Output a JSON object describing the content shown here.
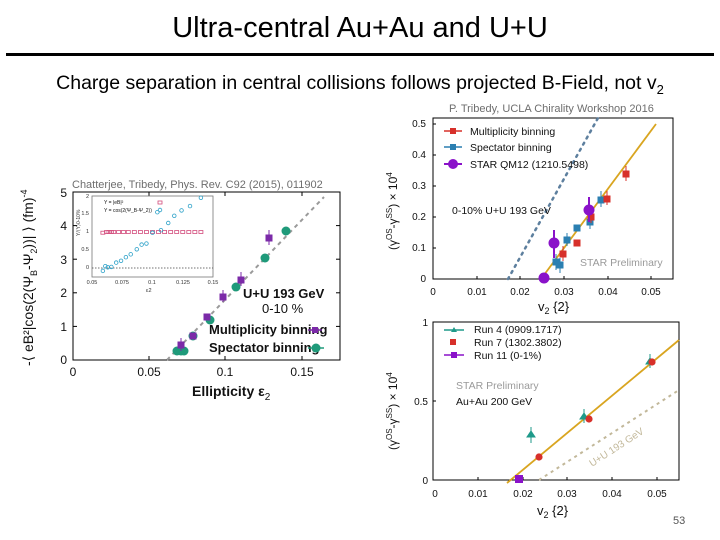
{
  "slide": {
    "title": "Ultra-central Au+Au and U+U",
    "subtitle_main": "Charge separation in central collisions follows projected B-Field, not v",
    "subtitle_sub": "2",
    "credit_right": "P. Tribedy, UCLA Chirality Workshop 2016",
    "credit_left": "Chatterjee, Tribedy, Phys. Rev. C92 (2015), 011902",
    "slide_number": "53"
  },
  "colors": {
    "multiplicity_left": "#7b2aa8",
    "spectator_left": "#1f9a7a",
    "fit_dashed_gray": "#9a9a9a",
    "multiplicity_right": "#d7302a",
    "spectator_right": "#2b7fb1",
    "star_qm12": "#8a12c9",
    "fit_line_orange": "#d9a520",
    "uu_dotted_blue": "#5d7f9e",
    "run4": "#1f9a8a",
    "run7": "#d7302a",
    "run11": "#8a12c9",
    "uu_dashed_tan": "#c2b89a",
    "inset_pink": "#d34c7c",
    "inset_cyan": "#2aa0c8"
  },
  "chart_data": [
    {
      "id": "left-main",
      "type": "scatter",
      "title": "",
      "xlabel": "Ellipticity ε2",
      "ylabel": "-⟨ eB² |cos(2(Ψ_B-Ψ_2))| ⟩ (fm)^-4",
      "xlim": [
        0,
        0.175
      ],
      "ylim": [
        0,
        5
      ],
      "xticks": [
        "0",
        "0.05",
        "0.1",
        "0.15"
      ],
      "yticks": [
        "0",
        "1",
        "2",
        "3",
        "4",
        "5"
      ],
      "grid": false,
      "legend_position": "lower right",
      "annotations": [
        "U+U 193 GeV",
        "0-10 %"
      ],
      "series": [
        {
          "name": "Multiplicity binning",
          "marker": "square",
          "points": [
            [
              0.069,
              0.28
            ],
            [
              0.072,
              0.42
            ],
            [
              0.08,
              0.72
            ],
            [
              0.089,
              1.3
            ],
            [
              0.1,
              1.88
            ],
            [
              0.112,
              2.38
            ],
            [
              0.137,
              3.65
            ]
          ]
        },
        {
          "name": "Spectator binning",
          "marker": "hexagon",
          "points": [
            [
              0.068,
              0.26
            ],
            [
              0.071,
              0.26
            ],
            [
              0.073,
              0.26
            ],
            [
              0.079,
              0.7
            ],
            [
              0.09,
              1.2
            ],
            [
              0.107,
              2.18
            ],
            [
              0.126,
              3.04
            ],
            [
              0.14,
              3.84
            ]
          ]
        },
        {
          "name": "linear fit",
          "style": "dashed",
          "points": [
            [
              0.062,
              0.0
            ],
            [
              0.165,
              4.85
            ]
          ]
        }
      ]
    },
    {
      "id": "left-inset",
      "type": "scatter",
      "xlabel": "ε2",
      "ylabel": "Y/⟨Y⟩ 0-10%",
      "xlim": [
        0.05,
        0.15
      ],
      "ylim": [
        -0.25,
        2
      ],
      "xticks": [
        "0.05",
        "0.075",
        "0.1",
        "0.125",
        "0.15"
      ],
      "yticks": [
        "0",
        "0.5",
        "1",
        "1.5",
        "2"
      ],
      "reference_line": 0,
      "legend_position": "upper left",
      "series": [
        {
          "name": "Y = |eB|²",
          "marker": "open-square",
          "points": [
            [
              0.059,
              0.98
            ],
            [
              0.062,
              1.0
            ],
            [
              0.064,
              1.0
            ],
            [
              0.066,
              1.0
            ],
            [
              0.068,
              1.0
            ],
            [
              0.072,
              1.0
            ],
            [
              0.076,
              1.0
            ],
            [
              0.08,
              1.0
            ],
            [
              0.085,
              1.0
            ],
            [
              0.09,
              1.0
            ],
            [
              0.095,
              1.0
            ],
            [
              0.1,
              1.0
            ],
            [
              0.105,
              1.0
            ],
            [
              0.11,
              1.0
            ],
            [
              0.115,
              1.0
            ],
            [
              0.12,
              1.0
            ],
            [
              0.125,
              1.0
            ],
            [
              0.13,
              1.0
            ],
            [
              0.135,
              1.0
            ],
            [
              0.14,
              1.0
            ]
          ]
        },
        {
          "name": "Y = cos(2(Ψ_B-Ψ_2))",
          "marker": "open-circle",
          "points": [
            [
              0.059,
              -0.08
            ],
            [
              0.061,
              0.05
            ],
            [
              0.063,
              0.02
            ],
            [
              0.066,
              0.03
            ],
            [
              0.07,
              0.15
            ],
            [
              0.074,
              0.2
            ],
            [
              0.078,
              0.3
            ],
            [
              0.082,
              0.38
            ],
            [
              0.087,
              0.52
            ],
            [
              0.091,
              0.65
            ],
            [
              0.095,
              0.68
            ],
            [
              0.1,
              0.98
            ],
            [
              0.104,
              1.55
            ],
            [
              0.107,
              1.05
            ],
            [
              0.113,
              1.25
            ],
            [
              0.118,
              1.45
            ],
            [
              0.124,
              1.6
            ],
            [
              0.131,
              1.72
            ],
            [
              0.14,
              1.95
            ]
          ]
        }
      ]
    },
    {
      "id": "right-top",
      "type": "scatter",
      "xlabel": "v2 {2}",
      "ylabel": "(γ^OS - γ^SS) × 10^4",
      "xlim": [
        0,
        0.055
      ],
      "ylim": [
        0,
        0.52
      ],
      "xticks": [
        "0",
        "0.01",
        "0.02",
        "0.03",
        "0.04",
        "0.05"
      ],
      "yticks": [
        "0",
        "0.1",
        "0.2",
        "0.3",
        "0.4",
        "0.5"
      ],
      "legend_position": "upper left",
      "annotations": [
        "0-10% U+U 193 GeV",
        "STAR Preliminary"
      ],
      "series": [
        {
          "name": "Multiplicity binning",
          "marker": "square",
          "points": [
            [
              0.0282,
              0.08
            ],
            [
              0.0312,
              0.115
            ],
            [
              0.0345,
              0.2
            ],
            [
              0.0382,
              0.26
            ],
            [
              0.0425,
              0.34
            ]
          ]
        },
        {
          "name": "Spectator binning",
          "marker": "square",
          "points": [
            [
              0.0275,
              0.055
            ],
            [
              0.0284,
              0.045
            ],
            [
              0.03,
              0.125
            ],
            [
              0.0323,
              0.165
            ],
            [
              0.0352,
              0.185
            ],
            [
              0.0378,
              0.255
            ]
          ]
        },
        {
          "name": "STAR QM12 (1210.5498)",
          "marker": "circle",
          "points": [
            [
              0.0253,
              0.0
            ],
            [
              0.0276,
              0.11
            ],
            [
              0.0355,
              0.22
            ]
          ]
        },
        {
          "name": "linear fit (solid)",
          "style": "solid",
          "points": [
            [
              0.0247,
              0.0
            ],
            [
              0.051,
              0.5
            ]
          ]
        },
        {
          "name": "dotted line",
          "style": "dotted",
          "points": [
            [
              0.0172,
              0.0
            ],
            [
              0.0378,
              0.52
            ]
          ]
        }
      ]
    },
    {
      "id": "right-bottom",
      "type": "scatter",
      "xlabel": "v2 {2}",
      "ylabel": "(γ^OS - γ^SS) × 10^4",
      "xlim": [
        0,
        0.055
      ],
      "ylim": [
        0,
        1
      ],
      "xticks": [
        "0",
        "0.01",
        "0.02",
        "0.03",
        "0.04",
        "0.05"
      ],
      "yticks": [
        "0",
        "0.5",
        "1"
      ],
      "legend_position": "upper left",
      "annotations": [
        "STAR Preliminary",
        "Au+Au 200 GeV",
        "U+U 193 GeV"
      ],
      "series": [
        {
          "name": "Run 4 (0909.1717)",
          "marker": "triangle",
          "points": [
            [
              0.022,
              0.16
            ],
            [
              0.034,
              0.4
            ],
            [
              0.0482,
              0.77
            ]
          ]
        },
        {
          "name": "Run 7 (1302.3802)",
          "marker": "square",
          "points": [
            [
              0.0238,
              0.145
            ],
            [
              0.035,
              0.385
            ],
            [
              0.0487,
              0.745
            ]
          ]
        },
        {
          "name": "Run 11 (0-1%)",
          "marker": "square",
          "points": [
            [
              0.019,
              0.0
            ]
          ]
        },
        {
          "name": "linear fit (solid)",
          "style": "solid",
          "points": [
            [
              0.0165,
              -0.02
            ],
            [
              0.055,
              0.9
            ]
          ]
        },
        {
          "name": "U+U 193 GeV (dashed)",
          "style": "dashed",
          "points": [
            [
              0.0238,
              0.0
            ],
            [
              0.055,
              0.57
            ]
          ]
        }
      ]
    }
  ],
  "left_plot": {
    "ylabel_text": "-⟨ eB²|cos(2(Ψ",
    "ylabel_B": "B",
    "ylabel_mid": "-Ψ",
    "ylabel_2": "2",
    "ylabel_end": "))| ⟩ (fm)",
    "ylabel_exp": "-4",
    "xlabel": "Ellipticity ε",
    "xlabel_sub": "2",
    "annot_1": "U+U 193 GeV",
    "annot_2": "0-10 %",
    "legend": [
      "Multiplicity binning",
      "Spectator binning"
    ],
    "xticks": [
      "0",
      "0.05",
      "0.1",
      "0.15"
    ],
    "yticks": [
      "0",
      "1",
      "2",
      "3",
      "4",
      "5"
    ],
    "inset": {
      "legend": [
        "Y = |eB|²",
        "Y = cos(2(Ψ_B-Ψ_2))"
      ],
      "xticks": [
        "0.05",
        "0.075",
        "0.1",
        "0.125",
        "0.15"
      ],
      "yticks": [
        "0",
        "0.5",
        "1",
        "1.5",
        "2"
      ],
      "xlabel": "ε2",
      "ylabel": "Y/⟨Y⟩0-10%"
    }
  },
  "right_top_plot": {
    "legend": [
      "Multiplicity binning",
      "Spectator binning",
      "STAR QM12 (1210.5498)"
    ],
    "annot": "0-10% U+U 193 GeV",
    "preliminary": "STAR Preliminary",
    "xticks": [
      "0",
      "0.01",
      "0.02",
      "0.03",
      "0.04",
      "0.05"
    ],
    "yticks": [
      "0",
      "0.1",
      "0.2",
      "0.3",
      "0.4",
      "0.5"
    ],
    "xlabel": "v",
    "xlabel_sub": "2",
    "xlabel_end": " {2}",
    "ylabel": "(γOS-γSS) × 10⁴"
  },
  "right_bottom_plot": {
    "legend": [
      "Run 4 (0909.1717)",
      "Run 7 (1302.3802)",
      "Run 11 (0-1%)"
    ],
    "preliminary": "STAR Preliminary",
    "annot": "Au+Au 200 GeV",
    "uu_label": "U+U 193 GeV",
    "xticks": [
      "0",
      "0.01",
      "0.02",
      "0.03",
      "0.04",
      "0.05"
    ],
    "yticks": [
      "0",
      "0.5",
      "1"
    ],
    "xlabel": "v",
    "xlabel_sub": "2",
    "xlabel_end": " {2}",
    "ylabel": "(γOS-γSS) × 10⁴"
  }
}
